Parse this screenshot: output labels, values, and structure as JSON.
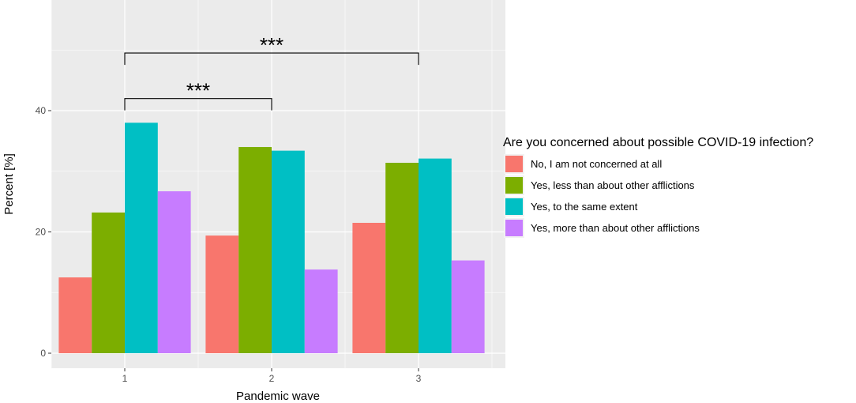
{
  "chart_data": {
    "type": "bar",
    "xlabel": "Pandemic wave",
    "ylabel": "Percent [%]",
    "categories": [
      "1",
      "2",
      "3"
    ],
    "ylim": [
      0,
      54
    ],
    "yticks": [
      0,
      20,
      40
    ],
    "grid": true,
    "legend": {
      "title": "Are you concerned about possible COVID-19 infection?",
      "placement": "right"
    },
    "series": [
      {
        "name": "No, I am not concerned at all",
        "color": "#F8766D",
        "values": [
          12.5,
          19.4,
          21.5
        ]
      },
      {
        "name": "Yes, less than about other afflictions",
        "color": "#7CAE00",
        "values": [
          23.2,
          34.0,
          31.4
        ]
      },
      {
        "name": "Yes, to the same extent",
        "color": "#00BFC4",
        "values": [
          38.0,
          33.4,
          32.1
        ]
      },
      {
        "name": "Yes, more than about other afflictions",
        "color": "#C77CFF",
        "values": [
          26.7,
          13.8,
          15.3
        ]
      }
    ],
    "annotations": [
      {
        "label": "***",
        "from": "1",
        "to": "2",
        "y": 42
      },
      {
        "label": "***",
        "from": "1",
        "to": "3",
        "y": 49.5
      }
    ]
  }
}
